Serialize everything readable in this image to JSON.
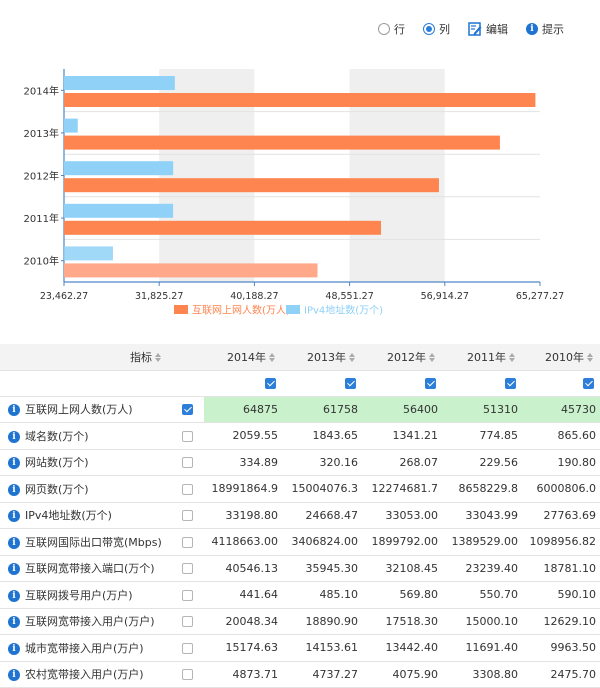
{
  "toolbar": {
    "row_label": "行",
    "col_label": "列",
    "edit_label": "编辑",
    "tip_label": "提示",
    "selected": "col"
  },
  "chart_data": {
    "type": "bar",
    "orientation": "horizontal",
    "categories": [
      "2014年",
      "2013年",
      "2012年",
      "2011年",
      "2010年"
    ],
    "series": [
      {
        "name": "互联网上网人数(万人)",
        "color": "#ff8550",
        "values": [
          64875,
          61758,
          56400,
          51310,
          45730
        ]
      },
      {
        "name": "IPv4地址数(万个)",
        "color": "#8fd1f7",
        "values": [
          33198.8,
          24668.47,
          33053,
          33043.99,
          27763.69
        ]
      }
    ],
    "xlim": [
      23462.27,
      65277.27
    ],
    "xticks": [
      "23,462.27",
      "31,825.27",
      "40,188.27",
      "48,551.27",
      "56,914.27",
      "65,277.27"
    ],
    "legend_position": "bottom",
    "grid": true
  },
  "table": {
    "header_label": "指标",
    "years": [
      "2014年",
      "2013年",
      "2012年",
      "2011年",
      "2010年"
    ],
    "rows": [
      {
        "name": "互联网上网人数(万人)",
        "checked": true,
        "values": [
          "64875",
          "61758",
          "56400",
          "51310",
          "45730"
        ]
      },
      {
        "name": "域名数(万个)",
        "checked": false,
        "values": [
          "2059.55",
          "1843.65",
          "1341.21",
          "774.85",
          "865.60"
        ]
      },
      {
        "name": "网站数(万个)",
        "checked": false,
        "values": [
          "334.89",
          "320.16",
          "268.07",
          "229.56",
          "190.80"
        ]
      },
      {
        "name": "网页数(万个)",
        "checked": false,
        "values": [
          "18991864.9",
          "15004076.3",
          "12274681.7",
          "8658229.8",
          "6000806.0"
        ]
      },
      {
        "name": "IPv4地址数(万个)",
        "checked": false,
        "values": [
          "33198.80",
          "24668.47",
          "33053.00",
          "33043.99",
          "27763.69"
        ]
      },
      {
        "name": "互联网国际出口带宽(Mbps)",
        "checked": false,
        "values": [
          "4118663.00",
          "3406824.00",
          "1899792.00",
          "1389529.00",
          "1098956.82"
        ]
      },
      {
        "name": "互联网宽带接入端口(万个)",
        "checked": false,
        "values": [
          "40546.13",
          "35945.30",
          "32108.45",
          "23239.40",
          "18781.10"
        ]
      },
      {
        "name": "互联网拨号用户(万户)",
        "checked": false,
        "values": [
          "441.64",
          "485.10",
          "569.80",
          "550.70",
          "590.10"
        ]
      },
      {
        "name": "互联网宽带接入用户(万户)",
        "checked": false,
        "values": [
          "20048.34",
          "18890.90",
          "17518.30",
          "15000.10",
          "12629.10"
        ]
      },
      {
        "name": "城市宽带接入用户(万户)",
        "checked": false,
        "values": [
          "15174.63",
          "14153.61",
          "13442.40",
          "11691.40",
          "9963.50"
        ]
      },
      {
        "name": "农村宽带接入用户(万户)",
        "checked": false,
        "values": [
          "4873.71",
          "4737.27",
          "4075.90",
          "3308.80",
          "2475.70"
        ]
      }
    ]
  }
}
